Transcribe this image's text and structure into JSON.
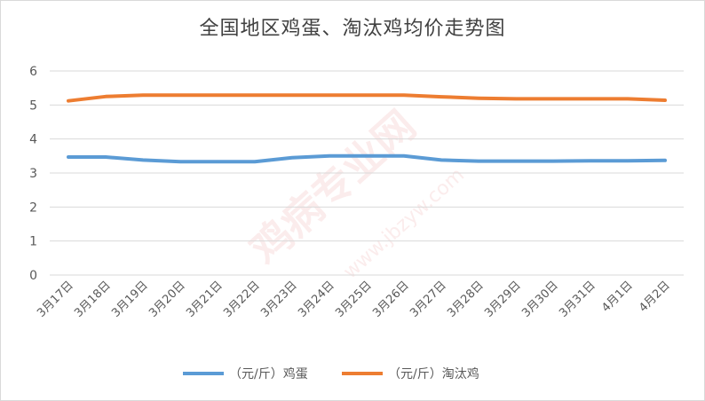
{
  "chart_data": {
    "type": "line",
    "title": "全国地区鸡蛋、淘汰鸡均价走势图",
    "categories": [
      "3月17日",
      "3月18日",
      "3月19日",
      "3月20日",
      "3月21日",
      "3月22日",
      "3月23日",
      "3月24日",
      "3月25日",
      "3月26日",
      "3月27日",
      "3月28日",
      "3月29日",
      "3月30日",
      "3月31日",
      "4月1日",
      "4月2日"
    ],
    "series": [
      {
        "name": "（元/斤）鸡蛋",
        "color": "#5b9bd5",
        "values": [
          3.47,
          3.47,
          3.38,
          3.33,
          3.33,
          3.33,
          3.45,
          3.5,
          3.5,
          3.5,
          3.38,
          3.35,
          3.35,
          3.35,
          3.36,
          3.36,
          3.37
        ]
      },
      {
        "name": "（元/斤）淘汰鸡",
        "color": "#ed7d31",
        "values": [
          5.12,
          5.25,
          5.29,
          5.29,
          5.29,
          5.29,
          5.29,
          5.29,
          5.29,
          5.29,
          5.24,
          5.2,
          5.18,
          5.18,
          5.18,
          5.18,
          5.14
        ]
      }
    ],
    "yticks": [
      "0",
      "1",
      "2",
      "3",
      "4",
      "5",
      "6"
    ],
    "ylim": [
      0,
      6
    ],
    "grid": true,
    "legend": "bottom",
    "watermark": "鸡病专业网 www.jbzyw.com"
  }
}
